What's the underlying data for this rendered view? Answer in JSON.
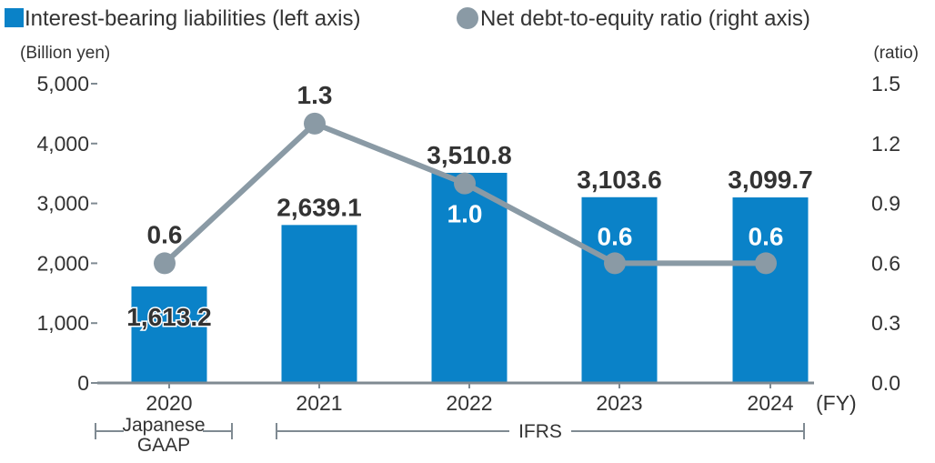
{
  "chart_data": {
    "type": "bar",
    "categories": [
      "2020",
      "2021",
      "2022",
      "2023",
      "2024"
    ],
    "x_unit": "(FY)",
    "series": [
      {
        "name": "Interest-bearing liabilities (left axis)",
        "type": "bar",
        "axis": "left",
        "color": "#0a82c8",
        "values": [
          1613.2,
          2639.1,
          3510.8,
          3103.6,
          3099.7
        ],
        "labels": [
          "1,613.2",
          "2,639.1",
          "3,510.8",
          "3,103.6",
          "3,099.7"
        ]
      },
      {
        "name": "Net debt-to-equity ratio (right axis)",
        "type": "line",
        "axis": "right",
        "color": "#8a9aa5",
        "values": [
          0.6,
          1.3,
          1.0,
          0.6,
          0.6
        ],
        "labels": [
          "0.6",
          "1.3",
          "1.0",
          "0.6",
          "0.6"
        ]
      }
    ],
    "left_axis": {
      "unit": "(Billion yen)",
      "range": [
        0,
        5000
      ],
      "ticks": [
        0,
        1000,
        2000,
        3000,
        4000,
        5000
      ],
      "tick_labels": [
        "0",
        "1,000",
        "2,000",
        "3,000",
        "4,000",
        "5,000"
      ]
    },
    "right_axis": {
      "unit": "(ratio)",
      "range": [
        0,
        1.5
      ],
      "ticks": [
        0,
        0.3,
        0.6,
        0.9,
        1.2,
        1.5
      ],
      "tick_labels": [
        "0.0",
        "0.3",
        "0.6",
        "0.9",
        "1.2",
        "1.5"
      ]
    },
    "grid": false,
    "legend_position": "top",
    "accounting_standards": [
      {
        "label_lines": [
          "Japanese",
          "GAAP"
        ],
        "from": "2020",
        "to": "2020"
      },
      {
        "label_lines": [
          "IFRS"
        ],
        "from": "2021",
        "to": "2024"
      }
    ]
  }
}
